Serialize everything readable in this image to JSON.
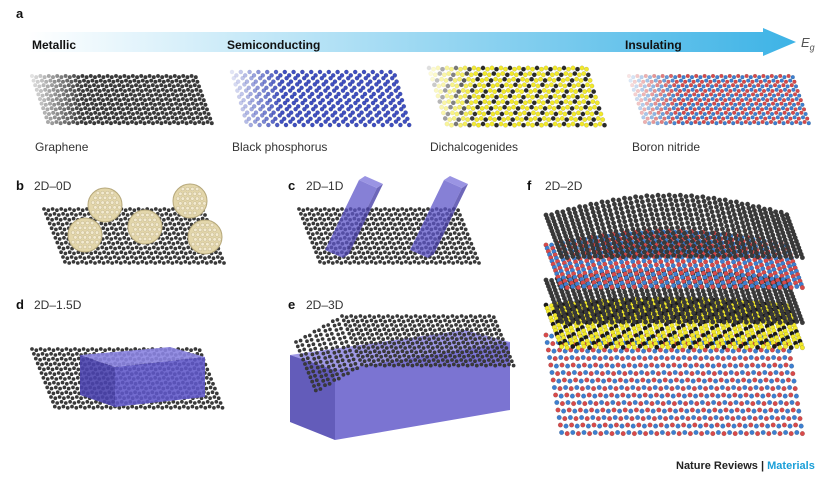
{
  "panel_a": {
    "letter": "a",
    "arrow_labels": [
      "Metallic",
      "Semiconducting",
      "Insulating"
    ],
    "axis_symbol": "E",
    "axis_subscript": "g",
    "materials": [
      "Graphene",
      "Black phosphorus",
      "Dichalcogenides",
      "Boron nitride"
    ]
  },
  "panels": [
    {
      "letter": "b",
      "title": "2D–0D"
    },
    {
      "letter": "c",
      "title": "2D–1D"
    },
    {
      "letter": "d",
      "title": "2D–1.5D"
    },
    {
      "letter": "e",
      "title": "2D–3D"
    },
    {
      "letter": "f",
      "title": "2D–2D"
    }
  ],
  "footer": {
    "journal": "Nature Reviews",
    "separator": " | ",
    "section": "Materials"
  },
  "colors": {
    "arrow": "#3db3e6",
    "carbon": "#3a3a3a",
    "phosphorus": "#3f4fc0",
    "sulfur": "#f2e92a",
    "boron": "#d84a4a",
    "nitrogen": "#3d7fd0",
    "nanoparticle": "#e3d6aa",
    "block": "#5e56c8",
    "accent": "#1a9fd8"
  }
}
